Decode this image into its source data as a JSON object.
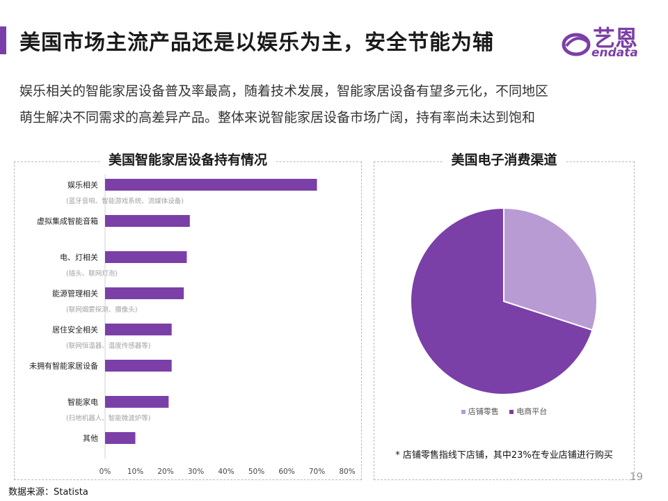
{
  "header": {
    "title": "美国市场主流产品还是以娱乐为主，安全节能为辅",
    "accent_color": "#7B3FA8"
  },
  "logo": {
    "cn_text": "艺恩",
    "en_text": "endata",
    "color": "#7B3FA8"
  },
  "intro": {
    "line1": "娱乐相关的智能家居设备普及率最高，随着技术发展，智能家居设备有望多元化，不同地区",
    "line2": "萌生解决不同需求的高差异产品。整体来说智能家居设备市场广阔，持有率尚未达到饱和"
  },
  "left_panel": {
    "title": "美国智能家居设备持有情况"
  },
  "right_panel": {
    "title": "美国电子消费渠道",
    "note": "* 店铺零售指线下店铺，其中23%在专业店铺进行购买"
  },
  "chart_data": [
    {
      "type": "bar",
      "orientation": "horizontal",
      "title": "美国智能家居设备持有情况",
      "categories": [
        "娱乐相关",
        "虚拟集成智能音箱",
        "电、灯相关",
        "能源管理相关",
        "居住安全相关",
        "未拥有智能家居设备",
        "智能家电",
        "其他"
      ],
      "subtitles": [
        "(蓝牙音响、智能游戏系统、流媒体设备)",
        "",
        "(插头、联网灯泡)",
        "(联网烟雾探测、摄像头)",
        "(联网恒温器、温度传感器等)",
        "",
        "(扫地机器人、智能微波炉等)",
        ""
      ],
      "values": [
        70,
        28,
        27,
        26,
        22,
        22,
        21,
        10
      ],
      "xlim": [
        0,
        80
      ],
      "xticks": [
        "0%",
        "10%",
        "20%",
        "30%",
        "40%",
        "50%",
        "60%",
        "70%",
        "80%"
      ],
      "bar_color": "#7B3FA8",
      "grid": false
    },
    {
      "type": "pie",
      "title": "美国电子消费渠道",
      "labels": [
        "店铺零售",
        "电商平台"
      ],
      "values": [
        30,
        70
      ],
      "colors": [
        "#B89BD3",
        "#7B3FA8"
      ],
      "legend_position": "bottom"
    }
  ],
  "footer": {
    "page_number": "19",
    "source": "数据来源：Statista"
  }
}
